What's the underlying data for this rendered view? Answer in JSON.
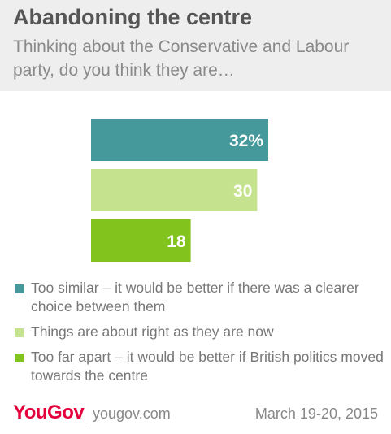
{
  "header": {
    "title": "Abandoning the centre",
    "subtitle": "Thinking about the Conservative and Labour party, do you think they are…"
  },
  "chart_data": {
    "type": "bar",
    "orientation": "horizontal",
    "categories": [
      "Too similar – it would be better if there was a clearer choice between them",
      "Things are about right as they are now",
      "Too far apart – it would be better if British politics moved towards the centre"
    ],
    "values": [
      32,
      30,
      18
    ],
    "data_labels": [
      "32%",
      "30",
      "18"
    ],
    "colors": [
      "#45999b",
      "#c5e38e",
      "#82c41d"
    ],
    "xlim": [
      0,
      32
    ],
    "grid": false,
    "legend_position": "bottom"
  },
  "footer": {
    "logo": "YouGov",
    "site": "yougov.com",
    "date": "March 19-20, 2015"
  }
}
